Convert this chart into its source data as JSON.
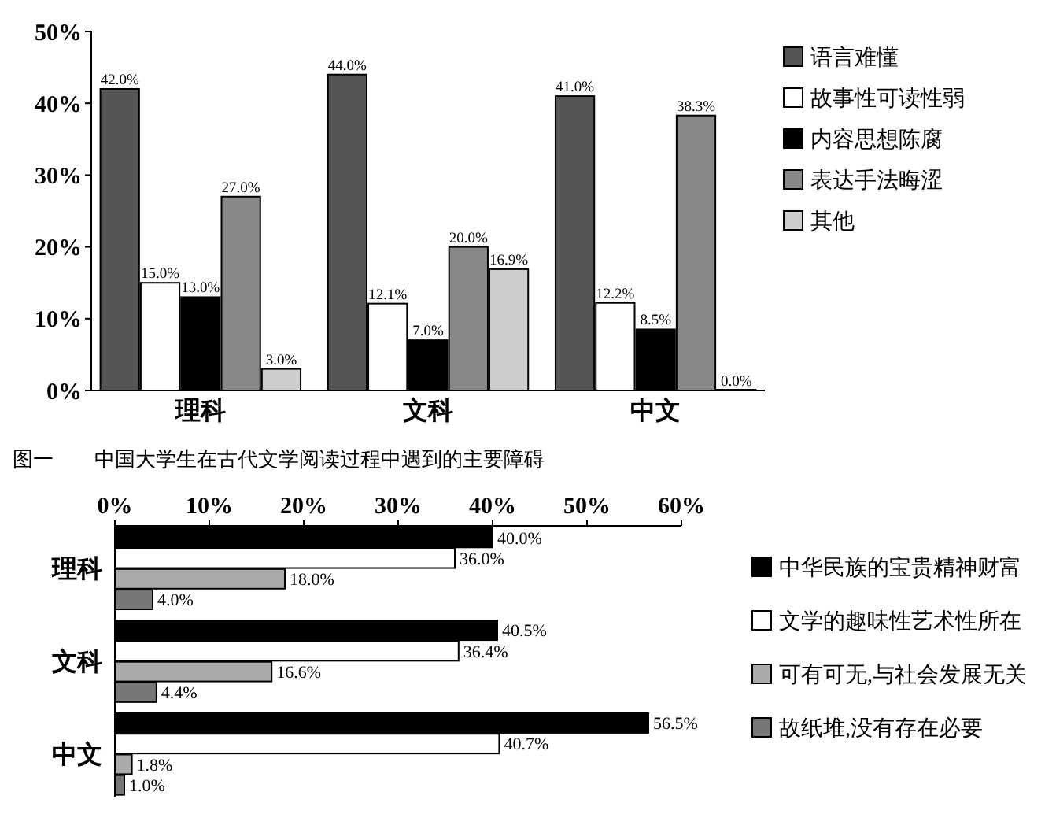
{
  "chart_data": [
    {
      "type": "bar",
      "title": "图一　　中国大学生在古代文学阅读过程中遇到的主要障碍",
      "categories": [
        "理科",
        "文科",
        "中文"
      ],
      "ylim": [
        0,
        50
      ],
      "yticks": [
        {
          "value": 0,
          "label": "0%"
        },
        {
          "value": 10,
          "label": "10%"
        },
        {
          "value": 20,
          "label": "20%"
        },
        {
          "value": 30,
          "label": "30%"
        },
        {
          "value": 40,
          "label": "40%"
        },
        {
          "value": 50,
          "label": "50%"
        }
      ],
      "legend": "right",
      "series": [
        {
          "name": "语言难懂",
          "color": "#555555",
          "values": [
            42.0,
            44.0,
            41.0
          ],
          "value_labels": [
            "42.0%",
            "44.0%",
            "41.0%"
          ]
        },
        {
          "name": "故事性可读性弱",
          "color": "#ffffff",
          "values": [
            15.0,
            12.1,
            12.2
          ],
          "value_labels": [
            "15.0%",
            "12.1%",
            "12.2%"
          ]
        },
        {
          "name": "内容思想陈腐",
          "color": "#000000",
          "values": [
            13.0,
            7.0,
            8.5
          ],
          "value_labels": [
            "13.0%",
            "7.0%",
            "8.5%"
          ]
        },
        {
          "name": "表达手法晦涩",
          "color": "#888888",
          "values": [
            27.0,
            20.0,
            38.3
          ],
          "value_labels": [
            "27.0%",
            "20.0%",
            "38.3%"
          ]
        },
        {
          "name": "其他",
          "color": "#cccccc",
          "values": [
            3.0,
            16.9,
            0.0
          ],
          "value_labels": [
            "3.0%",
            "16.9%",
            "0.0%"
          ]
        }
      ]
    },
    {
      "type": "bar",
      "orientation": "horizontal",
      "categories": [
        "理科",
        "文科",
        "中文"
      ],
      "xlim": [
        0,
        60
      ],
      "xticks": [
        {
          "value": 0,
          "label": "0%"
        },
        {
          "value": 10,
          "label": "10%"
        },
        {
          "value": 20,
          "label": "20%"
        },
        {
          "value": 30,
          "label": "30%"
        },
        {
          "value": 40,
          "label": "40%"
        },
        {
          "value": 50,
          "label": "50%"
        },
        {
          "value": 60,
          "label": "60%"
        }
      ],
      "legend": "right",
      "series": [
        {
          "name": "中华民族的宝贵精神财富",
          "color": "#000000",
          "values": [
            40.0,
            40.5,
            56.5
          ],
          "value_labels": [
            "40.0%",
            "40.5%",
            "56.5%"
          ]
        },
        {
          "name": "文学的趣味性艺术性所在",
          "color": "#ffffff",
          "values": [
            36.0,
            36.4,
            40.7
          ],
          "value_labels": [
            "36.0%",
            "36.4%",
            "40.7%"
          ]
        },
        {
          "name": "可有可无,与社会发展无关",
          "color": "#aaaaaa",
          "values": [
            18.0,
            16.6,
            1.8
          ],
          "value_labels": [
            "18.0%",
            "16.6%",
            "1.8%"
          ]
        },
        {
          "name": "故纸堆,没有存在必要",
          "color": "#777777",
          "values": [
            4.0,
            4.4,
            1.0
          ],
          "value_labels": [
            "4.0%",
            "4.4%",
            "1.0%"
          ]
        }
      ]
    }
  ]
}
